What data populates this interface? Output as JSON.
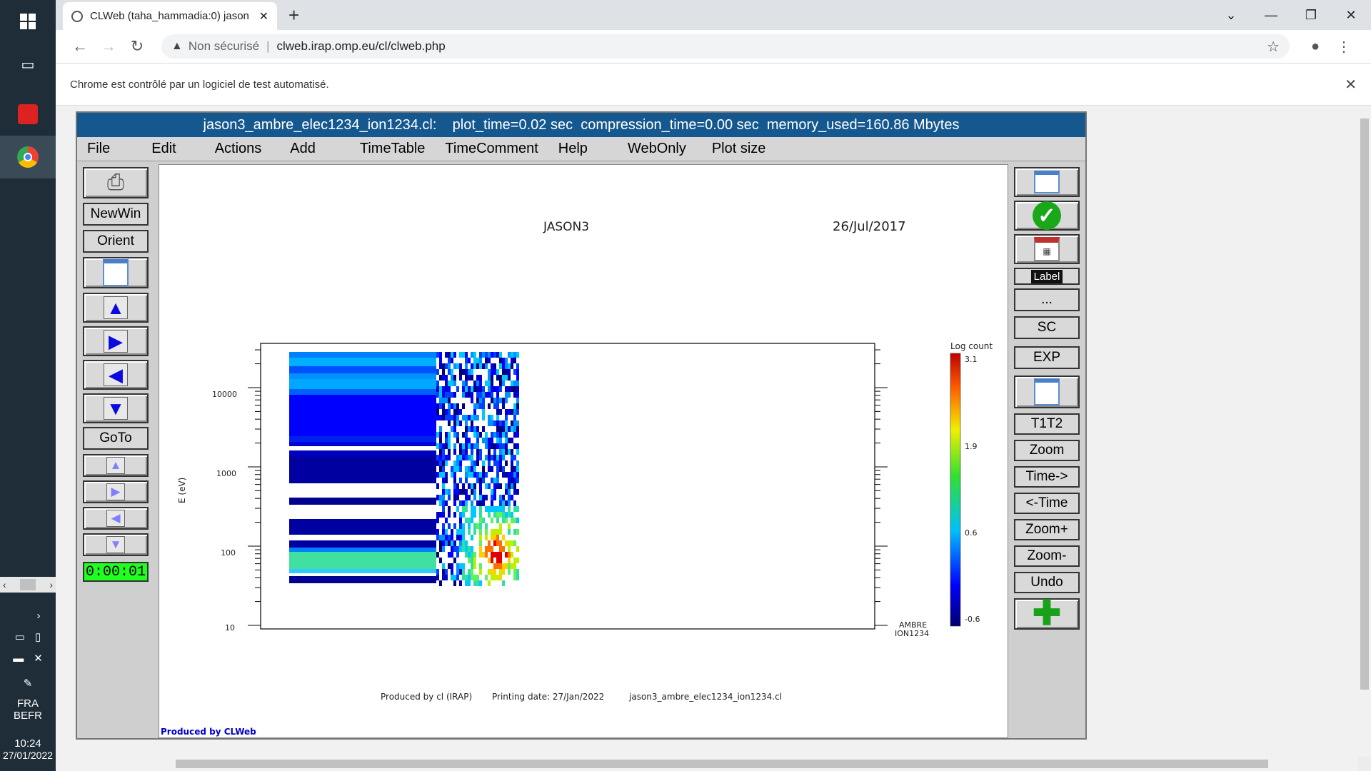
{
  "taskbar": {
    "lang": "FRA",
    "region": "BEFR",
    "time": "10:24",
    "date": "27/01/2022"
  },
  "browser": {
    "tab_title": "CLWeb (taha_hammadia:0) jason",
    "security_label": "Non sécurisé",
    "url": "clweb.irap.omp.eu/cl/clweb.php",
    "automation_notice": "Chrome est contrôlé par un logiciel de test automatisé."
  },
  "app": {
    "title": "jason3_ambre_elec1234_ion1234.cl:    plot_time=0.02 sec  compression_time=0.00 sec  memory_used=160.86 Mbytes",
    "menu": [
      "File",
      "Edit",
      "Actions",
      "Add",
      "TimeTable",
      "TimeComment",
      "Help",
      "WebOnly",
      "Plot size"
    ],
    "left_buttons": {
      "newwin": "NewWin",
      "orient": "Orient",
      "goto": "GoTo",
      "timer": "0:00:01"
    },
    "right_buttons": {
      "label": "Label",
      "more": "...",
      "sc": "SC",
      "exp": "EXP",
      "t1t2": "T1T2",
      "zoom": "Zoom",
      "time_fwd": "Time->",
      "time_back": "<-Time",
      "zoom_plus": "Zoom+",
      "zoom_minus": "Zoom-",
      "undo": "Undo"
    }
  },
  "plot": {
    "spacecraft": "JASON3",
    "date": "26/Jul/2017",
    "ylabel": "E (eV)",
    "yticks": [
      "10000",
      "1000",
      "100",
      "10"
    ],
    "colorbar_title": "Log count",
    "colorbar_ticks": [
      "3.1",
      "1.9",
      "0.6",
      "-0.6"
    ],
    "instrument_line1": "AMBRE",
    "instrument_line2": "ION1234",
    "footer_produced": "Produced by cl (IRAP)",
    "footer_printing": "Printing date: 27/Jan/2022",
    "footer_file": "jason3_ambre_elec1234_ion1234.cl",
    "credit": "Produced by CLWeb"
  },
  "chart_data": {
    "type": "heatmap",
    "title": "",
    "xlabel": "",
    "ylabel": "E (eV)",
    "ylim": [
      10,
      30000
    ],
    "yscale": "log",
    "colorbar": {
      "label": "Log count",
      "range": [
        -0.6,
        3.1
      ]
    }
  }
}
